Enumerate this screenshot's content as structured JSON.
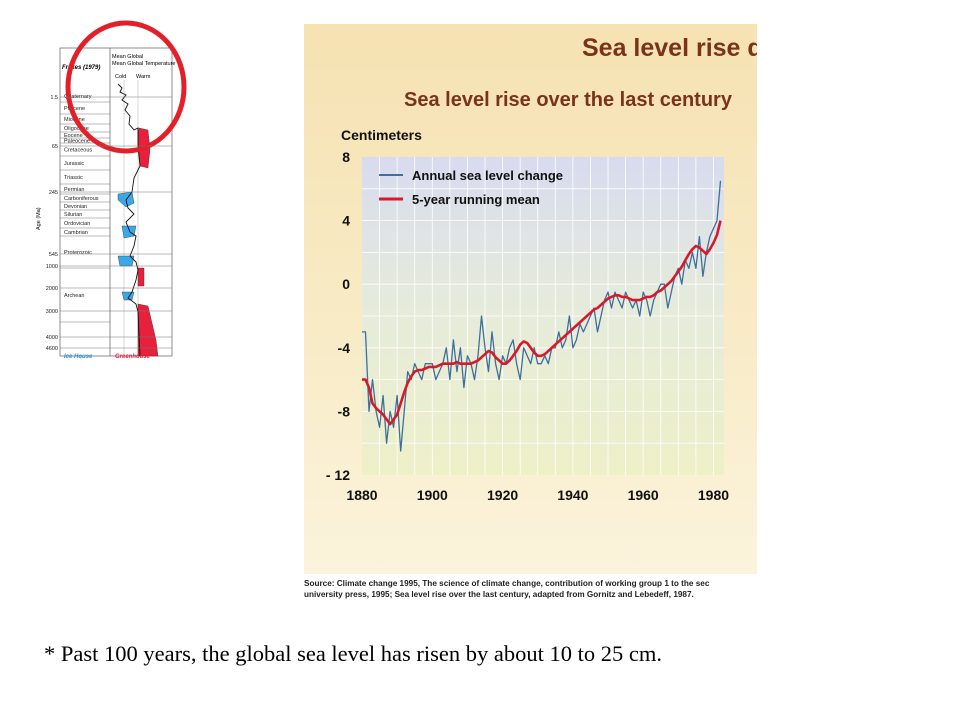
{
  "geologic_chart": {
    "header": "Mean Global Temperature",
    "cold_label": "Cold",
    "warm_label": "Warm",
    "source_label": "Frakes (1979)",
    "axis_label": "Age (Ma)",
    "ages": [
      "1.5",
      "65",
      "245",
      "545",
      "1000",
      "2000",
      "3000",
      "4000",
      "4600"
    ],
    "periods": [
      "Quaternary",
      "Pliocene",
      "Miocene",
      "Oligocene",
      "Eocene",
      "Paleocene",
      "Cretaceous",
      "Jurassic",
      "Triassic",
      "Permian",
      "Carboniferous",
      "Devonian",
      "Silurian",
      "Ordovician",
      "Cambrian",
      "Proterozoic",
      "Archean"
    ],
    "icehouse_label": "Ice House",
    "greenhouse_label": "Greenhouse",
    "colors": {
      "cold": "#3aa8e6",
      "warm": "#e8203c",
      "circle": "#e3202a"
    }
  },
  "panel": {
    "title": "Sea level rise due",
    "source_text_line1": "Source: Climate change 1995, The science of climate change, contribution of working group 1 to the sec",
    "source_text_line2": "university press,  1995; Sea level rise over the last century, adapted from Gornitz and Lebedeff, 1987."
  },
  "caption": "* Past 100 years, the global sea level has risen by about 10 to 25 cm.",
  "chart_data": {
    "type": "line",
    "title": "Sea level rise over the last century",
    "ylabel": "Centimeters",
    "xlabel": "",
    "xlim": [
      1880,
      1983
    ],
    "ylim": [
      -12,
      8
    ],
    "x_ticks": [
      "1880",
      "1900",
      "1920",
      "1940",
      "1960",
      "1980"
    ],
    "y_ticks": [
      "8",
      "4",
      "0",
      "-4",
      "-8",
      "- 12"
    ],
    "legend_position": "top-left",
    "series": [
      {
        "name": "Annual sea level change",
        "color": "#3f6f9a",
        "x": [
          1880,
          1881,
          1882,
          1883,
          1884,
          1885,
          1886,
          1887,
          1888,
          1889,
          1890,
          1891,
          1892,
          1893,
          1894,
          1895,
          1896,
          1897,
          1898,
          1899,
          1900,
          1901,
          1902,
          1903,
          1904,
          1905,
          1906,
          1907,
          1908,
          1909,
          1910,
          1911,
          1912,
          1913,
          1914,
          1915,
          1916,
          1917,
          1918,
          1919,
          1920,
          1921,
          1922,
          1923,
          1924,
          1925,
          1926,
          1927,
          1928,
          1929,
          1930,
          1931,
          1932,
          1933,
          1934,
          1935,
          1936,
          1937,
          1938,
          1939,
          1940,
          1941,
          1942,
          1943,
          1944,
          1945,
          1946,
          1947,
          1948,
          1949,
          1950,
          1951,
          1952,
          1953,
          1954,
          1955,
          1956,
          1957,
          1958,
          1959,
          1960,
          1961,
          1962,
          1963,
          1964,
          1965,
          1966,
          1967,
          1968,
          1969,
          1970,
          1971,
          1972,
          1973,
          1974,
          1975,
          1976,
          1977,
          1978,
          1979,
          1980,
          1981,
          1982
        ],
        "values": [
          -3,
          -3,
          -8,
          -6,
          -8,
          -9,
          -7,
          -10,
          -8,
          -9,
          -7,
          -10.5,
          -8,
          -5.5,
          -6,
          -5,
          -5.5,
          -6,
          -5,
          -5,
          -5,
          -6,
          -5.5,
          -5,
          -4,
          -6,
          -3.5,
          -5.5,
          -4,
          -6.5,
          -4.5,
          -5,
          -6,
          -4.5,
          -2,
          -4,
          -5.5,
          -3,
          -5,
          -6,
          -4.5,
          -5,
          -4,
          -3.5,
          -5,
          -6,
          -4,
          -4.5,
          -5,
          -4,
          -5,
          -5,
          -4.5,
          -5,
          -4,
          -4,
          -3,
          -4,
          -3.5,
          -2,
          -4,
          -3.5,
          -2.5,
          -3,
          -2.5,
          -2,
          -1.5,
          -3,
          -2,
          -1,
          -0.5,
          -1.5,
          -0.5,
          -1,
          -1.5,
          -0.5,
          -1,
          -1.5,
          -1,
          -2,
          -0.5,
          -1,
          -2,
          -1,
          -0.5,
          0,
          0,
          -1.5,
          -0.5,
          0.5,
          1,
          0,
          1.5,
          1,
          2,
          1,
          3,
          0.5,
          2,
          3,
          3.5,
          4,
          6.5
        ]
      },
      {
        "name": "5-year running mean",
        "color": "#d7192b",
        "x": [
          1880,
          1881,
          1882,
          1883,
          1884,
          1885,
          1886,
          1887,
          1888,
          1889,
          1890,
          1891,
          1892,
          1893,
          1894,
          1895,
          1896,
          1897,
          1898,
          1899,
          1900,
          1901,
          1902,
          1903,
          1904,
          1905,
          1906,
          1907,
          1908,
          1909,
          1910,
          1911,
          1912,
          1913,
          1914,
          1915,
          1916,
          1917,
          1918,
          1919,
          1920,
          1921,
          1922,
          1923,
          1924,
          1925,
          1926,
          1927,
          1928,
          1929,
          1930,
          1931,
          1932,
          1933,
          1934,
          1935,
          1936,
          1937,
          1938,
          1939,
          1940,
          1941,
          1942,
          1943,
          1944,
          1945,
          1946,
          1947,
          1948,
          1949,
          1950,
          1951,
          1952,
          1953,
          1954,
          1955,
          1956,
          1957,
          1958,
          1959,
          1960,
          1961,
          1962,
          1963,
          1964,
          1965,
          1966,
          1967,
          1968,
          1969,
          1970,
          1971,
          1972,
          1973,
          1974,
          1975,
          1976,
          1977,
          1978,
          1979,
          1980,
          1981,
          1982
        ],
        "values": [
          -6,
          -6,
          -6.5,
          -7.5,
          -7.8,
          -8,
          -8.2,
          -8.5,
          -8.8,
          -8.5,
          -8.2,
          -7.5,
          -6.8,
          -6.2,
          -5.8,
          -5.5,
          -5.4,
          -5.4,
          -5.3,
          -5.2,
          -5.2,
          -5.2,
          -5.1,
          -5,
          -5,
          -5,
          -5,
          -4.9,
          -5,
          -5,
          -5,
          -5,
          -4.9,
          -4.8,
          -4.6,
          -4.4,
          -4.2,
          -4.3,
          -4.6,
          -4.8,
          -5,
          -5,
          -4.8,
          -4.5,
          -4.2,
          -3.8,
          -3.6,
          -3.7,
          -4,
          -4.3,
          -4.5,
          -4.5,
          -4.4,
          -4.2,
          -4,
          -3.8,
          -3.6,
          -3.4,
          -3.2,
          -3,
          -2.8,
          -2.6,
          -2.4,
          -2.2,
          -2,
          -1.8,
          -1.6,
          -1.5,
          -1.3,
          -1.1,
          -0.9,
          -0.8,
          -0.7,
          -0.7,
          -0.8,
          -0.8,
          -0.9,
          -1,
          -1,
          -1,
          -0.9,
          -0.8,
          -0.8,
          -0.7,
          -0.5,
          -0.4,
          -0.2,
          0,
          0.2,
          0.5,
          0.8,
          1.1,
          1.5,
          1.9,
          2.2,
          2.4,
          2.3,
          2.1,
          1.9,
          2.2,
          2.6,
          3.1,
          4
        ]
      }
    ]
  }
}
